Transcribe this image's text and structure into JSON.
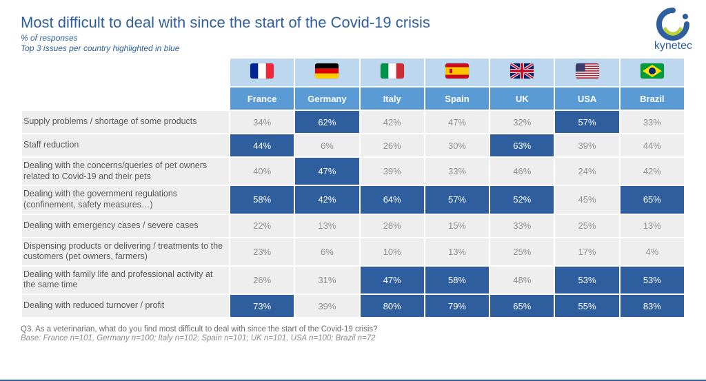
{
  "colors": {
    "title": "#2e5e9e",
    "subtitle": "#2e5e9e",
    "flag_header_bg": "#bdd7ee",
    "name_header_bg": "#5a9bd5",
    "row_bg": "#eeeeee",
    "highlight_bg": "#2e5e9e",
    "normal_text": "#8f8f8f",
    "highlight_text": "#ffffff",
    "label_text": "#595959",
    "logo": "#2e5e9e",
    "logo_accent": "#b9d232"
  },
  "title": "Most difficult to deal with since the start of the Covid-19 crisis",
  "subtitle": "% of responses",
  "subtitle2": "Top 3 issues per country highlighted in blue",
  "logo_text": "kynetec",
  "countries": [
    {
      "name": "France",
      "flag": "france"
    },
    {
      "name": "Germany",
      "flag": "germany"
    },
    {
      "name": "Italy",
      "flag": "italy"
    },
    {
      "name": "Spain",
      "flag": "spain"
    },
    {
      "name": "UK",
      "flag": "uk"
    },
    {
      "name": "USA",
      "flag": "usa"
    },
    {
      "name": "Brazil",
      "flag": "brazil"
    }
  ],
  "rows": [
    {
      "label": "Supply problems / shortage of some products",
      "cells": [
        {
          "v": "34%",
          "hl": false
        },
        {
          "v": "62%",
          "hl": true
        },
        {
          "v": "42%",
          "hl": false
        },
        {
          "v": "47%",
          "hl": false
        },
        {
          "v": "32%",
          "hl": false
        },
        {
          "v": "57%",
          "hl": true
        },
        {
          "v": "33%",
          "hl": false
        }
      ]
    },
    {
      "label": "Staff reduction",
      "cells": [
        {
          "v": "44%",
          "hl": true
        },
        {
          "v": "6%",
          "hl": false
        },
        {
          "v": "26%",
          "hl": false
        },
        {
          "v": "30%",
          "hl": false
        },
        {
          "v": "63%",
          "hl": true
        },
        {
          "v": "39%",
          "hl": false
        },
        {
          "v": "44%",
          "hl": false
        }
      ]
    },
    {
      "label": "Dealing with the concerns/queries of pet owners related to Covid-19 and their pets",
      "cells": [
        {
          "v": "40%",
          "hl": false
        },
        {
          "v": "47%",
          "hl": true
        },
        {
          "v": "39%",
          "hl": false
        },
        {
          "v": "33%",
          "hl": false
        },
        {
          "v": "46%",
          "hl": false
        },
        {
          "v": "24%",
          "hl": false
        },
        {
          "v": "42%",
          "hl": false
        }
      ]
    },
    {
      "label": "Dealing with the government regulations (confinement, safety measures…)",
      "cells": [
        {
          "v": "58%",
          "hl": true
        },
        {
          "v": "42%",
          "hl": true
        },
        {
          "v": "64%",
          "hl": true
        },
        {
          "v": "57%",
          "hl": true
        },
        {
          "v": "52%",
          "hl": true
        },
        {
          "v": "45%",
          "hl": false
        },
        {
          "v": "65%",
          "hl": true
        }
      ]
    },
    {
      "label": "Dealing with emergency cases / severe cases",
      "cells": [
        {
          "v": "22%",
          "hl": false
        },
        {
          "v": "13%",
          "hl": false
        },
        {
          "v": "28%",
          "hl": false
        },
        {
          "v": "15%",
          "hl": false
        },
        {
          "v": "33%",
          "hl": false
        },
        {
          "v": "25%",
          "hl": false
        },
        {
          "v": "13%",
          "hl": false
        }
      ]
    },
    {
      "label": "Dispensing products or delivering / treatments to the customers (pet owners, farmers)",
      "cells": [
        {
          "v": "23%",
          "hl": false
        },
        {
          "v": "6%",
          "hl": false
        },
        {
          "v": "10%",
          "hl": false
        },
        {
          "v": "13%",
          "hl": false
        },
        {
          "v": "25%",
          "hl": false
        },
        {
          "v": "17%",
          "hl": false
        },
        {
          "v": "4%",
          "hl": false
        }
      ]
    },
    {
      "label": "Dealing with family life and professional activity at the same time",
      "cells": [
        {
          "v": "26%",
          "hl": false
        },
        {
          "v": "31%",
          "hl": false
        },
        {
          "v": "47%",
          "hl": true
        },
        {
          "v": "58%",
          "hl": true
        },
        {
          "v": "48%",
          "hl": false
        },
        {
          "v": "53%",
          "hl": true
        },
        {
          "v": "53%",
          "hl": true
        }
      ]
    },
    {
      "label": "Dealing with reduced turnover / profit",
      "cells": [
        {
          "v": "73%",
          "hl": true
        },
        {
          "v": "39%",
          "hl": false
        },
        {
          "v": "80%",
          "hl": true
        },
        {
          "v": "79%",
          "hl": true
        },
        {
          "v": "65%",
          "hl": true
        },
        {
          "v": "55%",
          "hl": true
        },
        {
          "v": "83%",
          "hl": true
        }
      ]
    }
  ],
  "footer_question": "Q3. As a veterinarian, what do you find most difficult to deal with since the start of the Covid-19 crisis?",
  "footer_base": "Base: France n=101, Germany n=100; Italy n=102; Spain n=101; UK n=101, USA n=100; Brazil n=72"
}
